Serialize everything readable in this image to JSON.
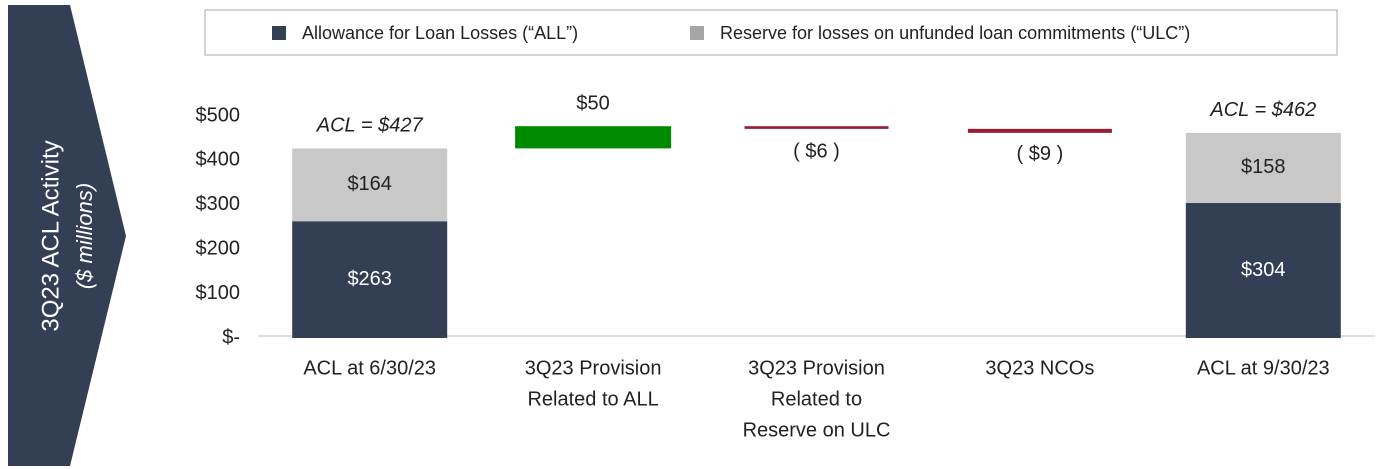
{
  "chart_data": {
    "type": "waterfall",
    "ylabel": "3Q23 ACL Activity",
    "ylabel_sub": "($ millions)",
    "categories": [
      [
        "ACL at 6/30/23"
      ],
      [
        "3Q23 Provision",
        "Related to ALL"
      ],
      [
        "3Q23 Provision",
        "Related to",
        "Reserve on ULC"
      ],
      [
        "3Q23 NCOs"
      ],
      [
        "ACL at 9/30/23"
      ]
    ],
    "series": [
      {
        "name": "Allowance for Loan Losses (“ALL”)",
        "color": "#333f55",
        "values": [
          263,
          null,
          null,
          null,
          304
        ],
        "value_labels": [
          "$263",
          null,
          null,
          null,
          "$304"
        ]
      },
      {
        "name": "Reserve for losses on unfunded loan commitments (“ULC”)",
        "color": "#c8c8c8",
        "legend_color": "#a6a6a6",
        "values": [
          164,
          null,
          null,
          null,
          158
        ],
        "value_labels": [
          "$164",
          null,
          null,
          null,
          "$158"
        ]
      }
    ],
    "totals": {
      "values": [
        427,
        null,
        null,
        null,
        462
      ],
      "value_labels": [
        "ACL = $427",
        null,
        null,
        null,
        "ACL = $462"
      ]
    },
    "changes": {
      "values": [
        null,
        50,
        -6,
        -9,
        null
      ],
      "value_labels": [
        null,
        "$50",
        "( $6 )",
        "( $9 )",
        null
      ],
      "increase_color": "#008a00",
      "decrease_color": "#9b1b30"
    },
    "ylim": [
      0,
      500
    ],
    "yticks": [
      {
        "value": 0,
        "label": "$-"
      },
      {
        "value": 100,
        "label": "$100"
      },
      {
        "value": 200,
        "label": "$200"
      },
      {
        "value": 300,
        "label": "$300"
      },
      {
        "value": 400,
        "label": "$400"
      },
      {
        "value": 500,
        "label": "$500"
      }
    ],
    "legend": "top"
  }
}
